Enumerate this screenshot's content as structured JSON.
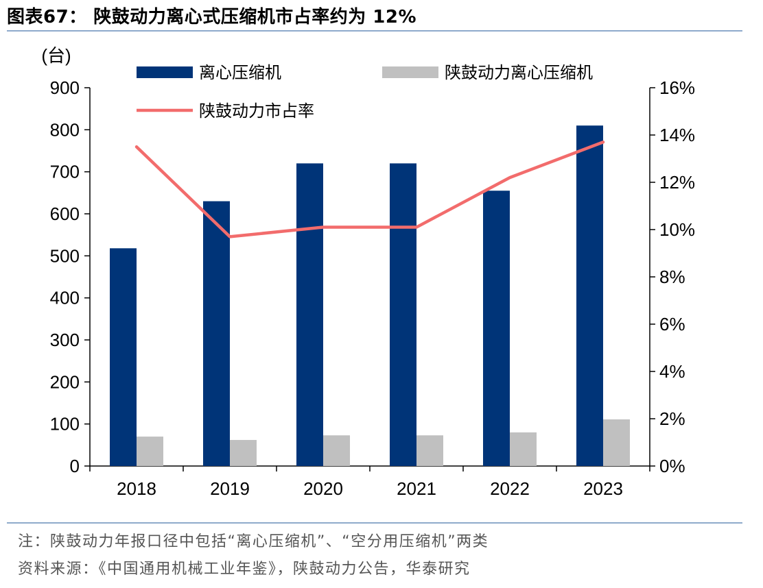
{
  "header": {
    "title": "图表67： 陕鼓动力离心式压缩机市占率约为 12%"
  },
  "footer": {
    "note": "注：陕鼓动力年报口径中包括“离心压缩机”、“空分用压缩机”两类",
    "source": "资料来源：《中国通用机械工业年鉴》，陕鼓动力公告，华泰研究"
  },
  "chart_data": {
    "type": "bar",
    "categories": [
      "2018",
      "2019",
      "2020",
      "2021",
      "2022",
      "2023"
    ],
    "left_unit": "(台)",
    "series": [
      {
        "name": "离心压缩机",
        "type": "bar",
        "axis": "left",
        "color": "#003478",
        "values": [
          518,
          630,
          720,
          720,
          655,
          810
        ]
      },
      {
        "name": "陕鼓动力离心压缩机",
        "type": "bar",
        "axis": "left",
        "color": "#c0c0c0",
        "values": [
          70,
          62,
          73,
          73,
          80,
          111
        ]
      },
      {
        "name": "陕鼓动力市占率",
        "type": "line",
        "axis": "right",
        "color": "#f26c6c",
        "values": [
          13.5,
          9.7,
          10.1,
          10.1,
          12.2,
          13.7
        ]
      }
    ],
    "y_left": {
      "min": 0,
      "max": 900,
      "ticks": [
        "0",
        "100",
        "200",
        "300",
        "400",
        "500",
        "600",
        "700",
        "800",
        "900"
      ]
    },
    "y_right": {
      "min": 0,
      "max": 16,
      "ticks": [
        "0%",
        "2%",
        "4%",
        "6%",
        "8%",
        "10%",
        "12%",
        "14%",
        "16%"
      ]
    },
    "legend_position": "top",
    "grid": false
  }
}
